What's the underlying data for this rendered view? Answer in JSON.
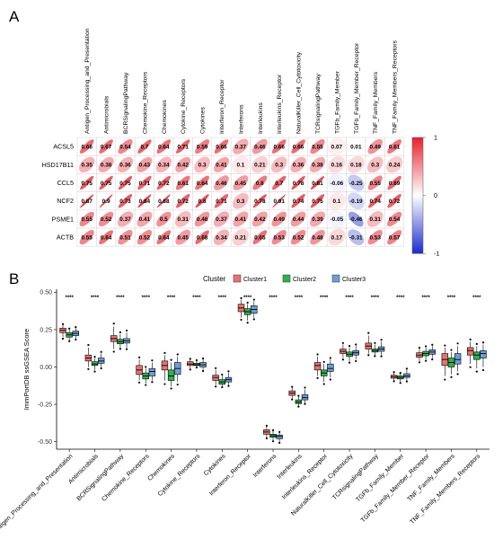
{
  "panels": {
    "a": "A",
    "b": "B"
  },
  "chart_data": [
    {
      "type": "heatmap",
      "colorbar": {
        "ticks": [
          1,
          0,
          -1
        ],
        "colors": {
          "high": "#e8202a",
          "mid": "#ffffff",
          "low": "#1b2ccf"
        }
      },
      "columns": [
        "Antigen_Processing_and_Presentation",
        "Antimicrobials",
        "BCRSignalingPathway",
        "Chemokine_Receptors",
        "Chemokines",
        "Cytokine_Receptors",
        "Cytokines",
        "Interferon_Receptor",
        "Interferons",
        "Interleukins",
        "Interleukins_Receptor",
        "NaturalKiller_Cell_Cytotoxicity",
        "TCRsignalingPathway",
        "TGFb_Family_Member",
        "TGFb_Family_Member_Receptor",
        "TNF_Family_Members",
        "TNF_Family_Members_Receptors"
      ],
      "rows": [
        {
          "name": "ACSL5",
          "values": [
            0.66,
            0.67,
            0.54,
            0.7,
            0.64,
            0.71,
            0.59,
            0.66,
            0.37,
            0.46,
            0.66,
            0.66,
            0.55,
            0.07,
            0.01,
            0.49,
            0.61
          ]
        },
        {
          "name": "HSD17B11",
          "values": [
            0.35,
            0.38,
            0.36,
            0.43,
            0.34,
            0.42,
            0.3,
            0.41,
            0.1,
            0.21,
            0.3,
            0.36,
            0.38,
            0.16,
            0.18,
            0.3,
            0.24
          ]
        },
        {
          "name": "CCL5",
          "values": [
            0.75,
            0.75,
            0.75,
            0.71,
            0.72,
            0.61,
            0.64,
            0.46,
            0.45,
            0.6,
            0.7,
            0.78,
            0.81,
            -0.06,
            -0.25,
            0.55,
            0.69
          ]
        },
        {
          "name": "NCF2",
          "values": [
            0.87,
            0.9,
            0.73,
            0.84,
            0.88,
            0.72,
            0.8,
            0.71,
            0.3,
            0.78,
            0.91,
            0.74,
            0.75,
            0.1,
            -0.19,
            0.74,
            0.72
          ]
        },
        {
          "name": "PSME1",
          "values": [
            0.55,
            0.52,
            0.37,
            0.41,
            0.5,
            0.31,
            0.48,
            0.37,
            0.41,
            0.42,
            0.49,
            0.44,
            0.39,
            -0.05,
            -0.46,
            0.31,
            0.54
          ]
        },
        {
          "name": "ACTB",
          "values": [
            0.55,
            0.64,
            0.51,
            0.52,
            0.64,
            0.45,
            0.68,
            0.34,
            0.21,
            0.65,
            0.53,
            0.52,
            0.48,
            0.17,
            -0.31,
            0.53,
            0.57
          ]
        }
      ]
    },
    {
      "type": "box",
      "ylabel": "ImmPortDB ssGSEA Score",
      "ylim": [
        -0.55,
        0.52
      ],
      "yticks": [
        0.5,
        0.25,
        0.0,
        -0.25,
        -0.5
      ],
      "ytick_labels": [
        "0.50",
        "0.25",
        "0.00",
        "-0.25",
        "-0.50"
      ],
      "legend": {
        "title": "Cluster",
        "placement": "top"
      },
      "series": [
        {
          "name": "Cluster1",
          "color": "#e8726e"
        },
        {
          "name": "Cluster2",
          "color": "#2fb24a"
        },
        {
          "name": "Cluster3",
          "color": "#6b9fd8"
        }
      ],
      "significance": "****",
      "categories": [
        "Antigen_Processing_and_Presentation",
        "Antimicrobials",
        "BCRSignalingPathway",
        "Chemokine_Receptors",
        "Chemokines",
        "Cytokine_Receptors",
        "Cytokines",
        "Interferon_Receptor",
        "Interferons",
        "Interleukins",
        "Interleukins_Receptor",
        "NaturalKiller_Cell_Cytotoxicity",
        "TCRsignalingPathway",
        "TGFb_Family_Member",
        "TGFb_Family_Member_Receptor",
        "TNF_Family_Members",
        "TNF_Family_Members_Receptors"
      ],
      "boxes": [
        [
          [
            0.2,
            0.23,
            0.245,
            0.26,
            0.28
          ],
          [
            0.18,
            0.2,
            0.215,
            0.23,
            0.25
          ],
          [
            0.19,
            0.21,
            0.225,
            0.24,
            0.26
          ]
        ],
        [
          [
            0.0,
            0.04,
            0.06,
            0.08,
            0.13
          ],
          [
            -0.02,
            0.01,
            0.02,
            0.035,
            0.06
          ],
          [
            0.0,
            0.025,
            0.04,
            0.06,
            0.09
          ]
        ],
        [
          [
            0.12,
            0.17,
            0.19,
            0.21,
            0.27
          ],
          [
            0.13,
            0.155,
            0.17,
            0.185,
            0.22
          ],
          [
            0.13,
            0.16,
            0.175,
            0.19,
            0.23
          ]
        ],
        [
          [
            -0.09,
            -0.05,
            -0.02,
            0.01,
            0.05
          ],
          [
            -0.11,
            -0.08,
            -0.06,
            -0.04,
            -0.01
          ],
          [
            -0.09,
            -0.06,
            -0.03,
            -0.01,
            0.03
          ]
        ],
        [
          [
            -0.09,
            -0.02,
            0.01,
            0.04,
            0.08
          ],
          [
            -0.13,
            -0.09,
            -0.06,
            -0.02,
            0.03
          ],
          [
            -0.1,
            -0.05,
            -0.01,
            0.03,
            0.07
          ]
        ],
        [
          [
            -0.01,
            0.01,
            0.02,
            0.035,
            0.05
          ],
          [
            0.0,
            0.01,
            0.015,
            0.025,
            0.04
          ],
          [
            -0.02,
            0.0,
            0.015,
            0.03,
            0.05
          ]
        ],
        [
          [
            -0.12,
            -0.09,
            -0.07,
            -0.055,
            -0.02
          ],
          [
            -0.13,
            -0.115,
            -0.1,
            -0.085,
            -0.06
          ],
          [
            -0.12,
            -0.1,
            -0.085,
            -0.07,
            -0.04
          ]
        ],
        [
          [
            0.33,
            0.37,
            0.395,
            0.42,
            0.45
          ],
          [
            0.31,
            0.35,
            0.37,
            0.39,
            0.42
          ],
          [
            0.33,
            0.36,
            0.385,
            0.41,
            0.44
          ]
        ],
        [
          [
            -0.47,
            -0.45,
            -0.435,
            -0.42,
            -0.4
          ],
          [
            -0.49,
            -0.47,
            -0.46,
            -0.45,
            -0.43
          ],
          [
            -0.5,
            -0.48,
            -0.465,
            -0.455,
            -0.44
          ]
        ],
        [
          [
            -0.21,
            -0.19,
            -0.175,
            -0.16,
            -0.14
          ],
          [
            -0.26,
            -0.245,
            -0.235,
            -0.22,
            -0.2
          ],
          [
            -0.24,
            -0.22,
            -0.205,
            -0.185,
            -0.15
          ]
        ],
        [
          [
            -0.06,
            -0.02,
            0.01,
            0.03,
            0.07
          ],
          [
            -0.1,
            -0.06,
            -0.04,
            -0.02,
            0.02
          ],
          [
            -0.07,
            -0.03,
            -0.01,
            0.02,
            0.05
          ]
        ],
        [
          [
            0.06,
            0.09,
            0.105,
            0.12,
            0.15
          ],
          [
            0.04,
            0.07,
            0.085,
            0.1,
            0.13
          ],
          [
            0.05,
            0.08,
            0.095,
            0.11,
            0.14
          ]
        ],
        [
          [
            0.09,
            0.12,
            0.14,
            0.16,
            0.21
          ],
          [
            0.08,
            0.1,
            0.11,
            0.12,
            0.15
          ],
          [
            0.08,
            0.105,
            0.12,
            0.135,
            0.17
          ]
        ],
        [
          [
            -0.09,
            -0.075,
            -0.065,
            -0.055,
            -0.04
          ],
          [
            -0.1,
            -0.08,
            -0.07,
            -0.06,
            -0.045
          ],
          [
            -0.09,
            -0.07,
            -0.06,
            -0.045,
            -0.02
          ]
        ],
        [
          [
            0.04,
            0.065,
            0.08,
            0.095,
            0.12
          ],
          [
            0.05,
            0.075,
            0.09,
            0.105,
            0.13
          ],
          [
            0.06,
            0.085,
            0.1,
            0.115,
            0.14
          ]
        ],
        [
          [
            -0.06,
            0.01,
            0.05,
            0.09,
            0.13
          ],
          [
            -0.05,
            0.0,
            0.03,
            0.06,
            0.1
          ],
          [
            -0.03,
            0.02,
            0.05,
            0.09,
            0.14
          ]
        ],
        [
          [
            0.02,
            0.08,
            0.11,
            0.13,
            0.17
          ],
          [
            -0.01,
            0.05,
            0.08,
            0.1,
            0.14
          ],
          [
            0.0,
            0.06,
            0.09,
            0.11,
            0.15
          ]
        ]
      ]
    }
  ]
}
